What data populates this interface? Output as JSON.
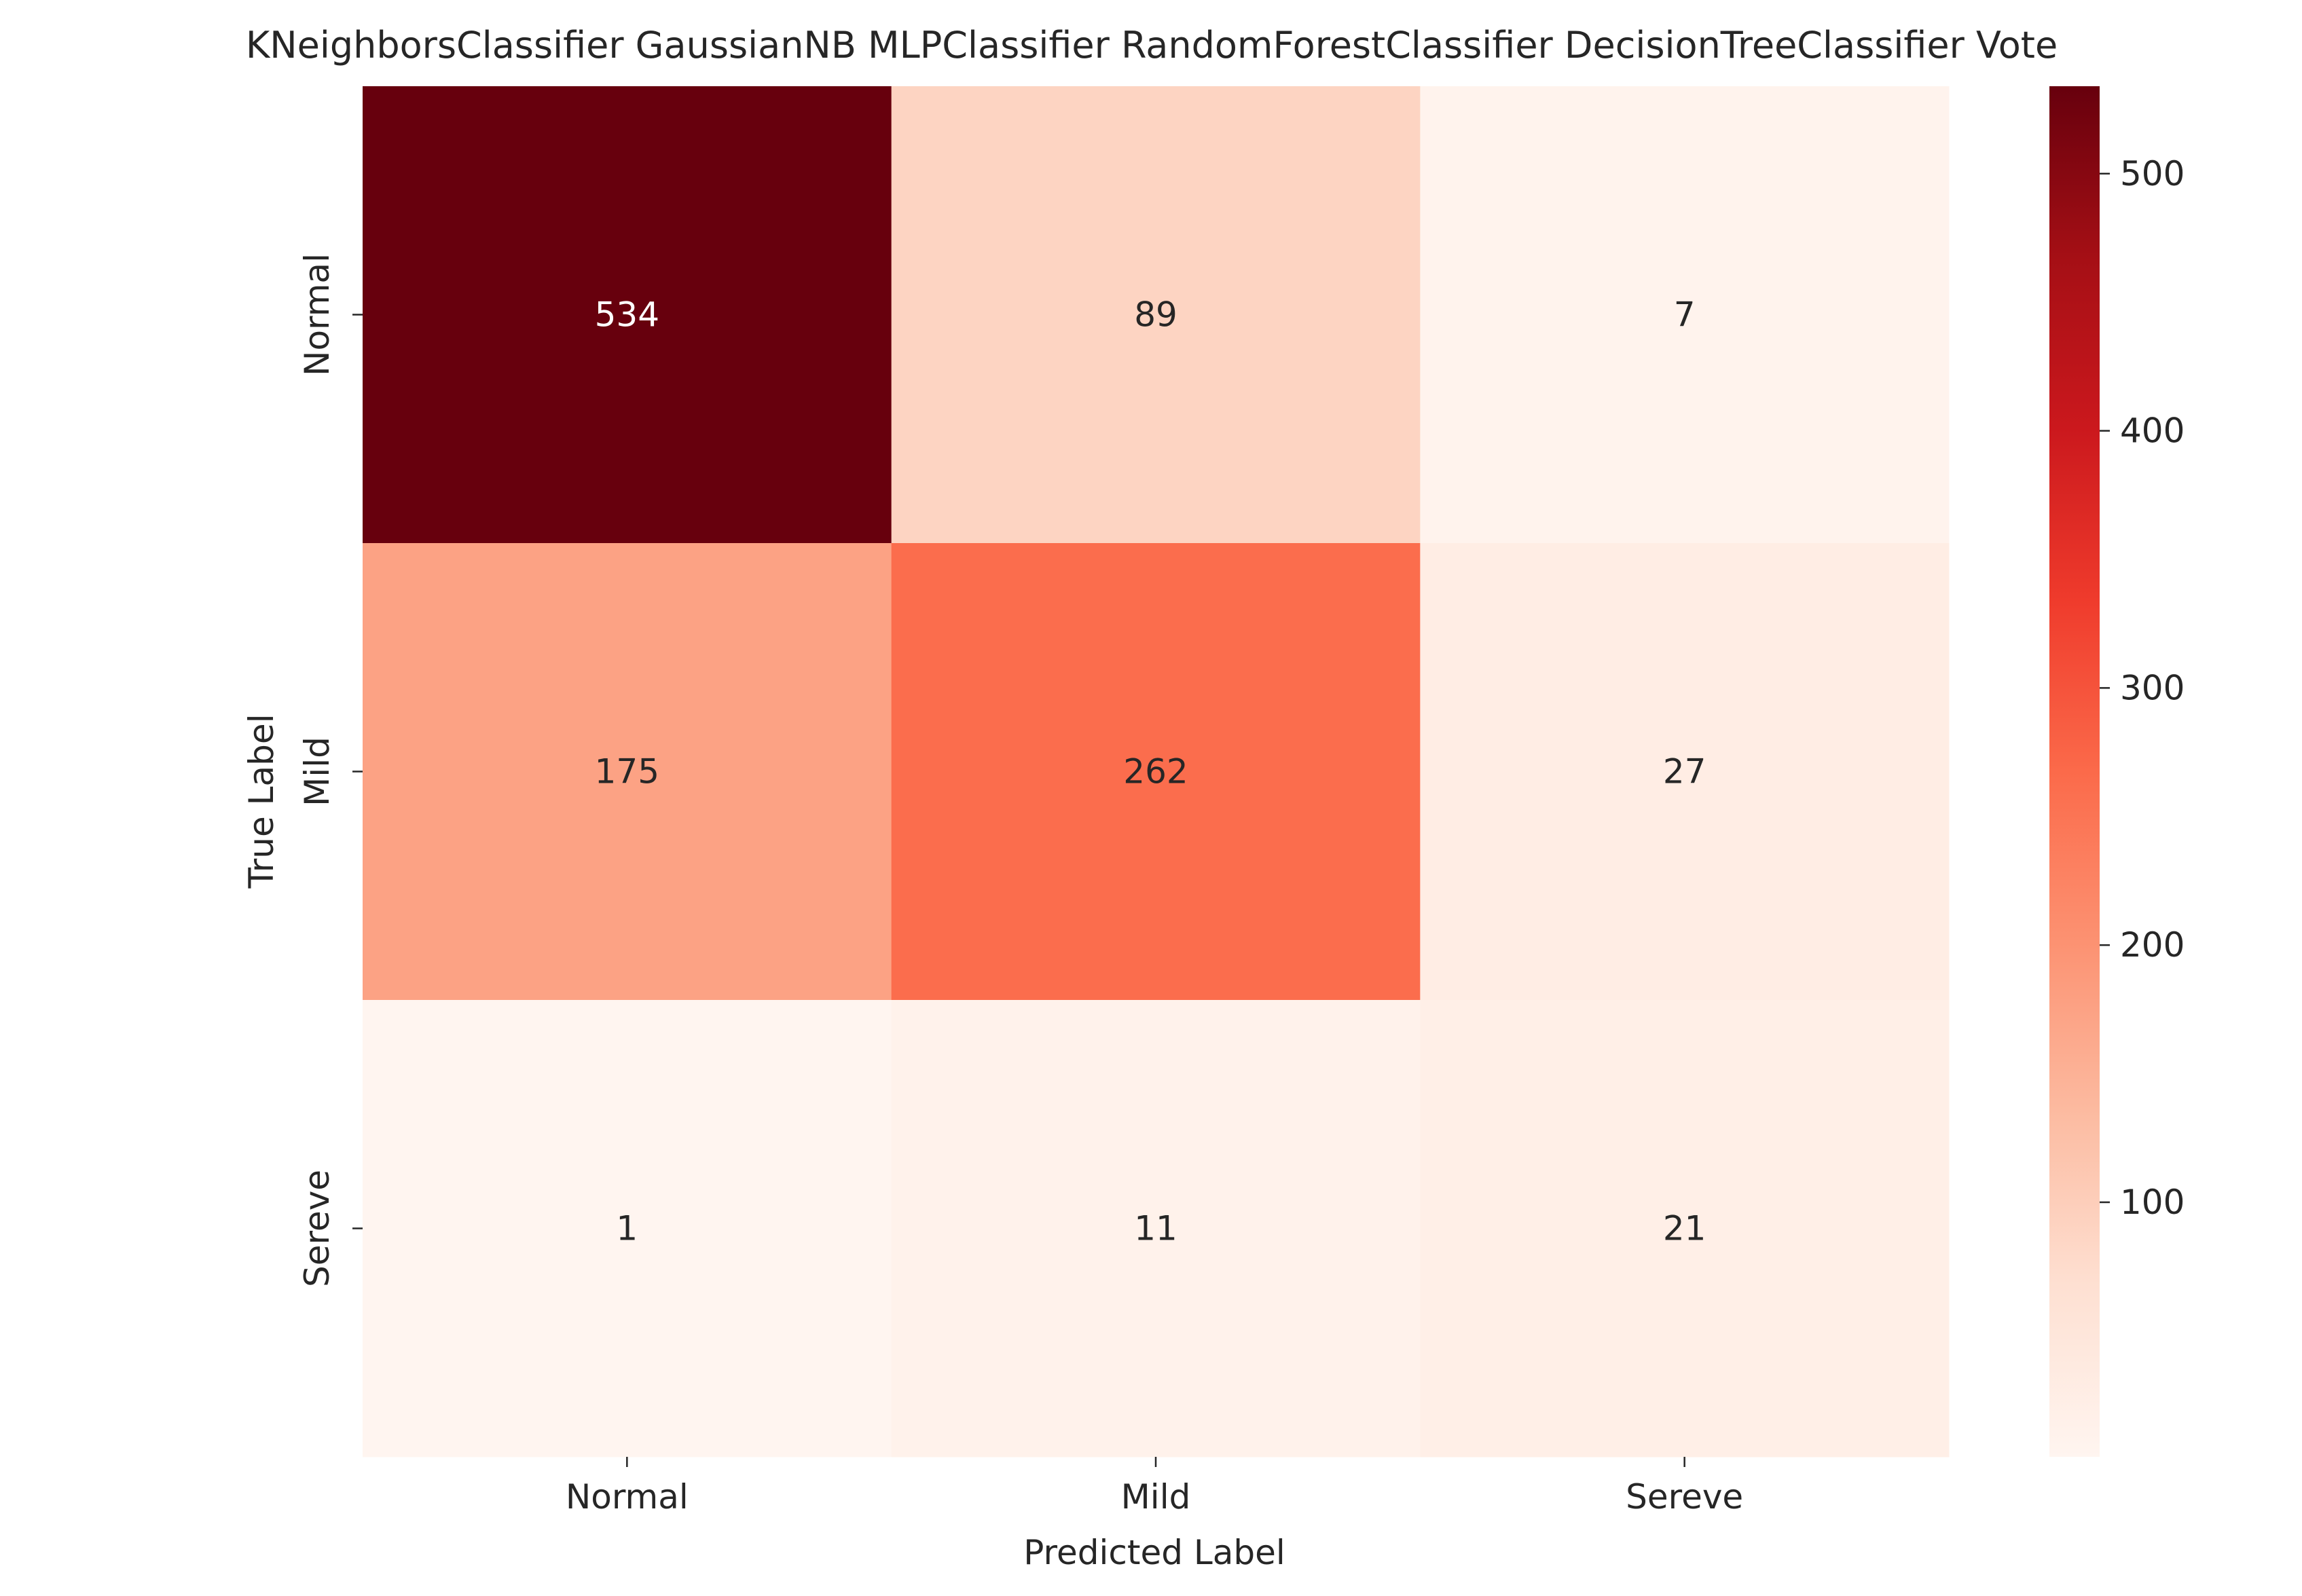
{
  "chart_data": {
    "type": "heatmap",
    "title": "KNeighborsClassifier GaussianNB MLPClassifier RandomForestClassifier DecisionTreeClassifier Vote",
    "xlabel": "Predicted Label",
    "ylabel": "True Label",
    "x_categories": [
      "Normal",
      "Mild",
      "Sereve"
    ],
    "y_categories": [
      "Normal",
      "Mild",
      "Sereve"
    ],
    "values": [
      [
        534,
        89,
        7
      ],
      [
        175,
        262,
        27
      ],
      [
        1,
        11,
        21
      ]
    ],
    "colormap": "Reds",
    "colorbar": {
      "vmin": 1,
      "vmax": 534,
      "ticks": [
        100,
        200,
        300,
        400,
        500
      ]
    },
    "grid": false
  }
}
